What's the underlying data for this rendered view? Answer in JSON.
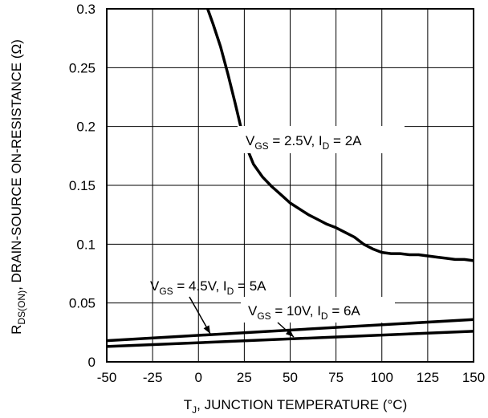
{
  "chart_data": {
    "type": "line",
    "xlabel": {
      "main": "T",
      "sub": "J",
      "rest": ", JUNCTION TEMPERATURE (°C)"
    },
    "ylabel": {
      "main": "R",
      "sub": "DS(ON)",
      "rest": ", DRAIN-SOURCE ON-RESISTANCE (Ω)"
    },
    "xlim": [
      -50,
      150
    ],
    "ylim": [
      0,
      0.3
    ],
    "x_ticks": [
      "-50",
      "-25",
      "0",
      "25",
      "50",
      "75",
      "100",
      "125",
      "150"
    ],
    "y_ticks": [
      "0",
      "0.05",
      "0.1",
      "0.15",
      "0.2",
      "0.25",
      "0.3"
    ],
    "grid": true,
    "series": [
      {
        "name": "VGS = 2.5V, ID = 2A",
        "x": [
          5,
          8,
          12,
          16,
          20,
          25,
          30,
          35,
          40,
          45,
          50,
          55,
          60,
          65,
          70,
          75,
          80,
          85,
          90,
          95,
          100,
          105,
          110,
          115,
          120,
          125,
          130,
          135,
          140,
          145,
          150
        ],
        "y": [
          0.3,
          0.287,
          0.268,
          0.245,
          0.22,
          0.187,
          0.168,
          0.157,
          0.149,
          0.142,
          0.135,
          0.13,
          0.125,
          0.121,
          0.117,
          0.114,
          0.11,
          0.106,
          0.1,
          0.096,
          0.093,
          0.092,
          0.092,
          0.091,
          0.091,
          0.09,
          0.089,
          0.088,
          0.087,
          0.087,
          0.086
        ]
      },
      {
        "name": "VGS = 4.5V, ID = 5A",
        "x": [
          -50,
          150
        ],
        "y": [
          0.018,
          0.036
        ]
      },
      {
        "name": "VGS = 10V, ID = 6A",
        "x": [
          -50,
          150
        ],
        "y": [
          0.013,
          0.026
        ]
      }
    ],
    "annotations": [
      {
        "v": "V",
        "vsub": "GS",
        "vtext": " = 2.5V, I",
        "isub": "D",
        "itext": " = 2A"
      },
      {
        "v": "V",
        "vsub": "GS",
        "vtext": " = 4.5V, I",
        "isub": "D",
        "itext": " = 5A"
      },
      {
        "v": "V",
        "vsub": "GS",
        "vtext": " = 10V, I",
        "isub": "D",
        "itext": " = 6A"
      }
    ]
  }
}
